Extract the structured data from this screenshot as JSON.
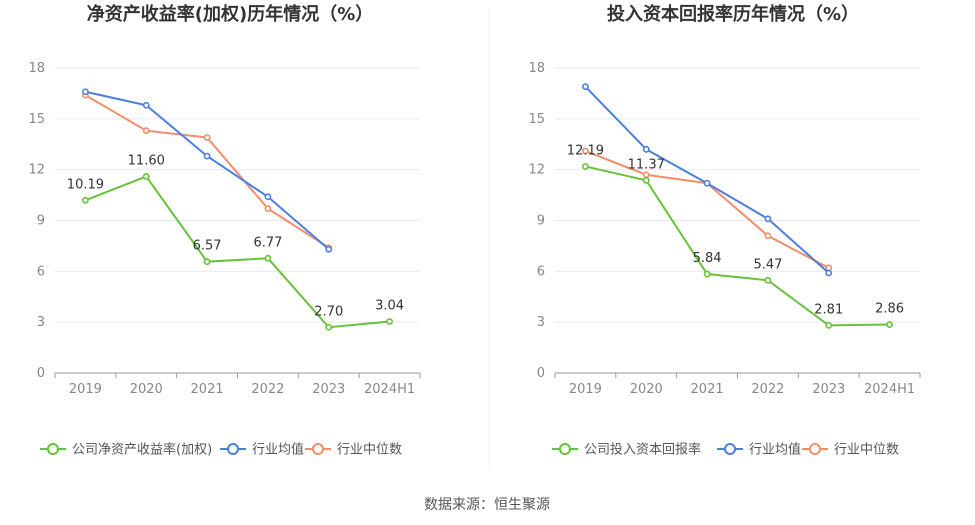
{
  "source": "数据来源：恒生聚源",
  "chart_data": [
    {
      "type": "line",
      "title": "净资产收益率(加权)历年情况（%）",
      "categories": [
        "2019",
        "2020",
        "2021",
        "2022",
        "2023",
        "2024H1"
      ],
      "ylim": [
        0,
        18
      ],
      "yticks": [
        "0",
        "3",
        "6",
        "9",
        "12",
        "15",
        "18"
      ],
      "grid": true,
      "legend_position": "bottom",
      "series": [
        {
          "name": "公司净资产收益率(加权)",
          "color": "#67c23a",
          "values": [
            10.19,
            11.6,
            6.57,
            6.77,
            2.7,
            3.04
          ],
          "labels": [
            "10.19",
            "11.60",
            "6.57",
            "6.77",
            "2.70",
            "3.04"
          ]
        },
        {
          "name": "行业均值",
          "color": "#4a7fe0",
          "values": [
            16.6,
            15.8,
            12.8,
            10.4,
            7.3,
            null
          ]
        },
        {
          "name": "行业中位数",
          "color": "#f28e6a",
          "values": [
            16.4,
            14.3,
            13.9,
            9.7,
            7.4,
            null
          ]
        }
      ]
    },
    {
      "type": "line",
      "title": "投入资本回报率历年情况（%）",
      "categories": [
        "2019",
        "2020",
        "2021",
        "2022",
        "2023",
        "2024H1"
      ],
      "ylim": [
        0,
        18
      ],
      "yticks": [
        "0",
        "3",
        "6",
        "9",
        "12",
        "15",
        "18"
      ],
      "grid": true,
      "legend_position": "bottom",
      "series": [
        {
          "name": "公司投入资本回报率",
          "color": "#67c23a",
          "values": [
            12.19,
            11.37,
            5.84,
            5.47,
            2.81,
            2.86
          ],
          "labels": [
            "12.19",
            "11.37",
            "5.84",
            "5.47",
            "2.81",
            "2.86"
          ]
        },
        {
          "name": "行业均值",
          "color": "#4a7fe0",
          "values": [
            16.9,
            13.2,
            11.2,
            9.1,
            5.9,
            null
          ]
        },
        {
          "name": "行业中位数",
          "color": "#f28e6a",
          "values": [
            13.1,
            11.7,
            11.2,
            8.1,
            6.2,
            null
          ]
        }
      ]
    }
  ]
}
